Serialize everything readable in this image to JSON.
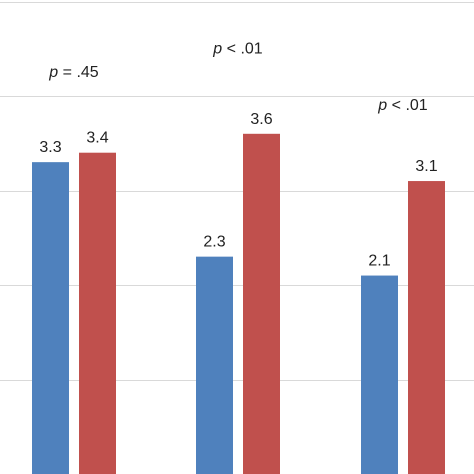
{
  "chart_data": {
    "type": "bar",
    "categories": [
      "",
      "",
      ""
    ],
    "series": [
      {
        "color": "#4f81bd",
        "values": [
          3.3,
          2.3,
          2.1
        ]
      },
      {
        "color": "#c0504d",
        "values": [
          3.4,
          3.6,
          3.1
        ]
      }
    ],
    "ylim": [
      0,
      5
    ],
    "gridlines": [
      1,
      2,
      3,
      4,
      5
    ],
    "grid": true,
    "legend": "none",
    "annotations": [
      {
        "letter": "p",
        "rest": " = .45",
        "group": 0,
        "level": 4.2
      },
      {
        "letter": "p",
        "rest": " < .01",
        "group": 1,
        "level": 4.45
      },
      {
        "letter": "p",
        "rest": " < .01",
        "group": 2,
        "level": 3.85
      }
    ]
  }
}
